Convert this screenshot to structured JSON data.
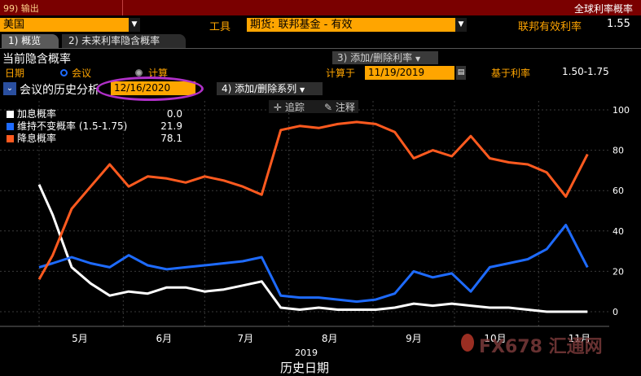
{
  "window": {
    "tab_label": "99) 输出",
    "title": "全球利率概率"
  },
  "controls": {
    "region": "美国",
    "tools_label": "工具",
    "futures_select": "期货: 联邦基金 - 有效",
    "effective_rate_label": "联邦有效利率",
    "effective_rate_value": "1.55"
  },
  "tabs": [
    {
      "label": "1) 概览",
      "active": true
    },
    {
      "label": "2) 未来利率隐含概率",
      "active": false
    }
  ],
  "section": {
    "title": "当前隐含概率",
    "add_remove_top": "3) 添加/删除利率",
    "date_label": "日期",
    "radio_meeting": "会议",
    "radio_calc": "计算",
    "calc_at_label": "计算于",
    "calc_at_value": "11/19/2019",
    "based_on_label": "基于利率",
    "based_on_value": "1.50-1.75",
    "history_label": "会议的历史分析",
    "history_date": "12/16/2020",
    "add_remove_series": "4) 添加/删除系列",
    "trace_label": "追踪",
    "annotate_label": "注释"
  },
  "legend": [
    {
      "name": "加息概率",
      "value": "0.0",
      "color": "#ffffff"
    },
    {
      "name": "维持不变概率 (1.5-1.75)",
      "value": "21.9",
      "color": "#1e6bff"
    },
    {
      "name": "降息概率",
      "value": "78.1",
      "color": "#ff5a1f"
    }
  ],
  "watermark": "FX678 汇通网",
  "chart_data": {
    "type": "line",
    "xlabel": "历史日期",
    "year_label": "2019",
    "x_ticks": [
      "5月",
      "6月",
      "7月",
      "8月",
      "9月",
      "10月",
      "11月"
    ],
    "y_ticks": [
      0,
      20,
      40,
      60,
      80,
      100
    ],
    "ylim": [
      0,
      100
    ],
    "grid": true,
    "x": [
      "2019-05-01",
      "2019-05-06",
      "2019-05-13",
      "2019-05-20",
      "2019-05-27",
      "2019-06-03",
      "2019-06-10",
      "2019-06-17",
      "2019-06-24",
      "2019-07-01",
      "2019-07-08",
      "2019-07-15",
      "2019-07-22",
      "2019-07-29",
      "2019-08-05",
      "2019-08-12",
      "2019-08-19",
      "2019-08-26",
      "2019-09-02",
      "2019-09-09",
      "2019-09-16",
      "2019-09-23",
      "2019-09-30",
      "2019-10-07",
      "2019-10-14",
      "2019-10-21",
      "2019-10-28",
      "2019-11-04",
      "2019-11-11",
      "2019-11-19"
    ],
    "series": [
      {
        "name": "加息概率",
        "color": "#ffffff",
        "values": [
          63,
          48,
          22,
          14,
          8,
          10,
          9,
          12,
          12,
          10,
          11,
          13,
          15,
          2,
          1,
          2,
          1,
          1,
          1,
          2,
          4,
          3,
          4,
          3,
          2,
          2,
          1,
          0,
          0,
          0
        ]
      },
      {
        "name": "维持不变概率 (1.5-1.75)",
        "color": "#1e6bff",
        "values": [
          22,
          24,
          27,
          24,
          22,
          28,
          23,
          21,
          22,
          23,
          24,
          25,
          27,
          8,
          7,
          7,
          6,
          5,
          6,
          9,
          20,
          17,
          19,
          10,
          22,
          24,
          26,
          31,
          43,
          22
        ]
      },
      {
        "name": "降息概率",
        "color": "#ff5a1f",
        "values": [
          16,
          28,
          51,
          62,
          73,
          62,
          67,
          66,
          64,
          67,
          65,
          62,
          58,
          90,
          92,
          91,
          93,
          94,
          93,
          89,
          76,
          80,
          77,
          87,
          76,
          74,
          73,
          69,
          57,
          78
        ]
      }
    ]
  }
}
